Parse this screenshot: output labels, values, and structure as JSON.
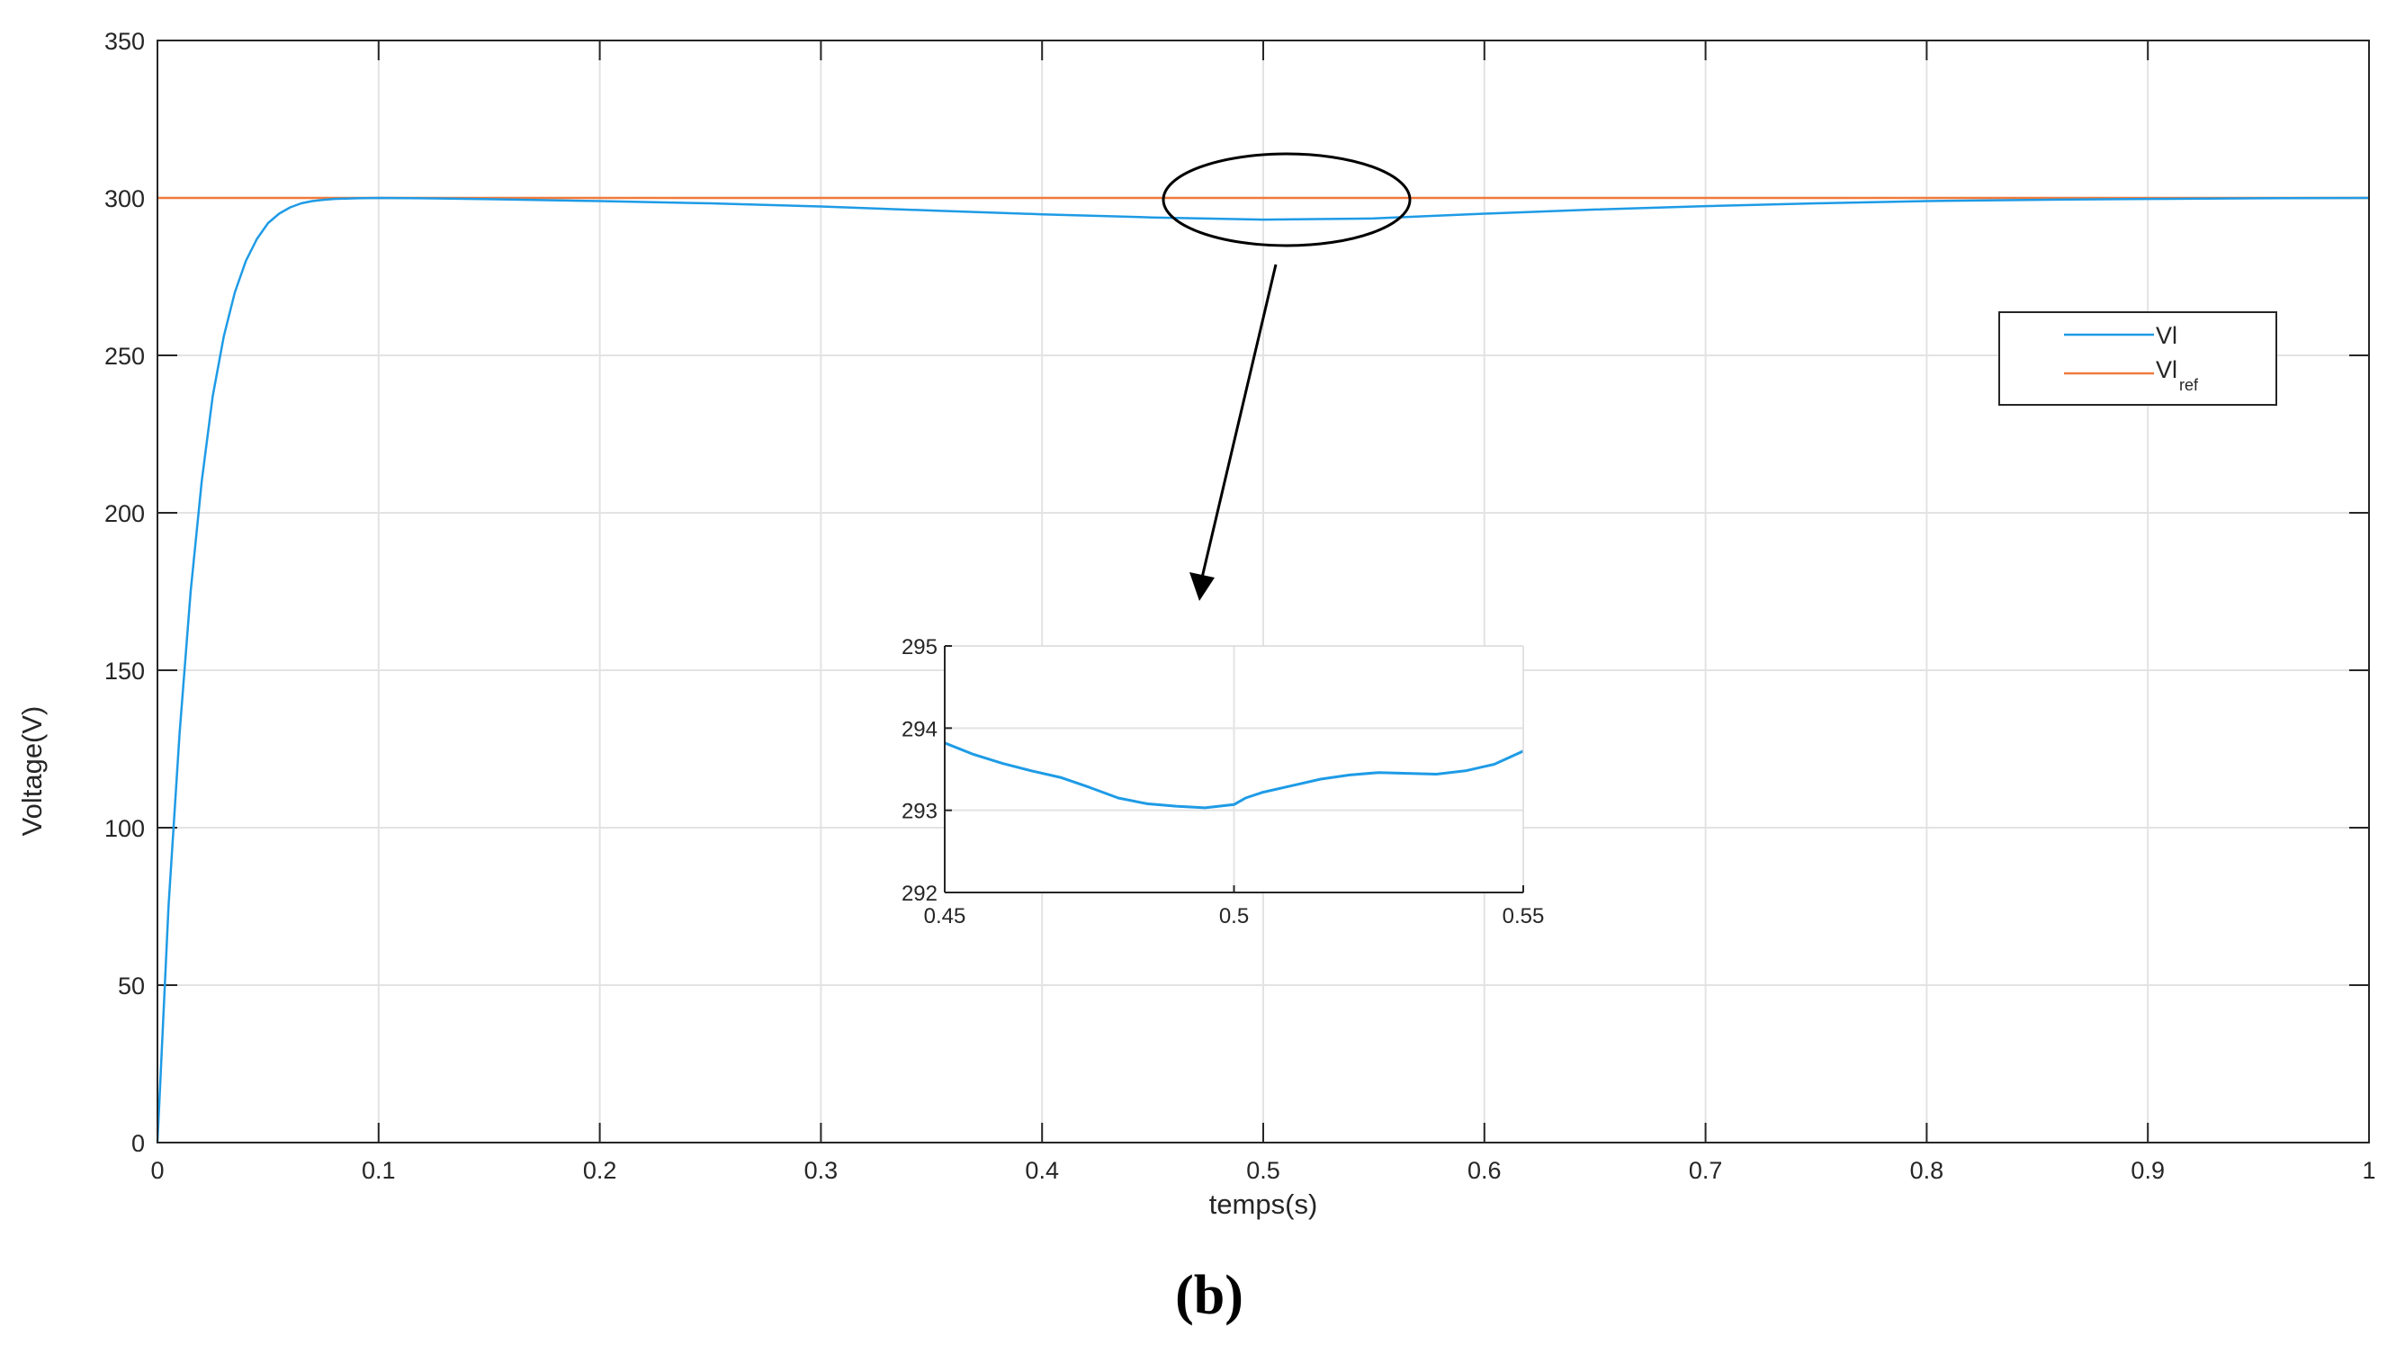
{
  "chart_data": {
    "type": "line",
    "caption": "(b)",
    "xlabel": "temps(s)",
    "ylabel": "Voltage(V)",
    "xlim": [
      0,
      1
    ],
    "ylim": [
      0,
      350
    ],
    "xticks": [
      0,
      0.1,
      0.2,
      0.3,
      0.4,
      0.5,
      0.6,
      0.7,
      0.8,
      0.9,
      1
    ],
    "xtick_labels": [
      "0",
      "0.1",
      "0.2",
      "0.3",
      "0.4",
      "0.5",
      "0.6",
      "0.7",
      "0.8",
      "0.9",
      "1"
    ],
    "yticks": [
      0,
      50,
      100,
      150,
      200,
      250,
      300,
      350
    ],
    "ytick_labels": [
      "0",
      "50",
      "100",
      "150",
      "200",
      "250",
      "300",
      "350"
    ],
    "grid": true,
    "legend_position": "right",
    "series": [
      {
        "name": "Vl",
        "color": "#1e9be6",
        "x": [
          0,
          0.005,
          0.01,
          0.015,
          0.02,
          0.025,
          0.03,
          0.035,
          0.04,
          0.045,
          0.05,
          0.055,
          0.06,
          0.065,
          0.07,
          0.075,
          0.08,
          0.09,
          0.1,
          0.12,
          0.15,
          0.2,
          0.25,
          0.3,
          0.35,
          0.4,
          0.45,
          0.5,
          0.55,
          0.6,
          0.65,
          0.7,
          0.75,
          0.8,
          0.85,
          0.9,
          0.95,
          1
        ],
        "y": [
          0,
          75,
          130,
          175,
          210,
          237,
          256,
          270,
          280,
          287,
          292,
          295,
          297,
          298.3,
          299,
          299.4,
          299.7,
          299.9,
          300,
          299.9,
          299.6,
          299,
          298.3,
          297.3,
          296,
          294.8,
          293.8,
          293.1,
          293.5,
          295,
          296.3,
          297.4,
          298.3,
          299,
          299.4,
          299.7,
          299.9,
          300
        ]
      },
      {
        "name": "Vl",
        "name_subscript": "ref",
        "color": "#f07a3c",
        "x": [
          0,
          1
        ],
        "y": [
          300,
          300
        ]
      }
    ],
    "annotations": [
      {
        "type": "ellipse",
        "x": 0.51,
        "y": 298
      },
      {
        "type": "arrow",
        "from_x": 0.51,
        "from_y": 285,
        "to_x": 0.47,
        "to_y": 172
      }
    ],
    "inset": {
      "xlim": [
        0.45,
        0.55
      ],
      "ylim": [
        292,
        295
      ],
      "xticks": [
        0.45,
        0.5,
        0.55
      ],
      "xtick_labels": [
        "0.45",
        "0.5",
        "0.55"
      ],
      "yticks": [
        292,
        293,
        294,
        295
      ],
      "ytick_labels": [
        "292",
        "293",
        "294",
        "295"
      ],
      "grid": true,
      "series": {
        "color": "#1e9be6",
        "x": [
          0.45,
          0.455,
          0.46,
          0.465,
          0.47,
          0.475,
          0.48,
          0.485,
          0.49,
          0.495,
          0.5,
          0.502,
          0.505,
          0.51,
          0.515,
          0.52,
          0.525,
          0.53,
          0.535,
          0.54,
          0.545,
          0.55
        ],
        "y": [
          293.82,
          293.68,
          293.57,
          293.48,
          293.4,
          293.28,
          293.15,
          293.08,
          293.05,
          293.03,
          293.07,
          293.15,
          293.22,
          293.3,
          293.38,
          293.43,
          293.46,
          293.45,
          293.44,
          293.48,
          293.56,
          293.72
        ]
      }
    }
  }
}
